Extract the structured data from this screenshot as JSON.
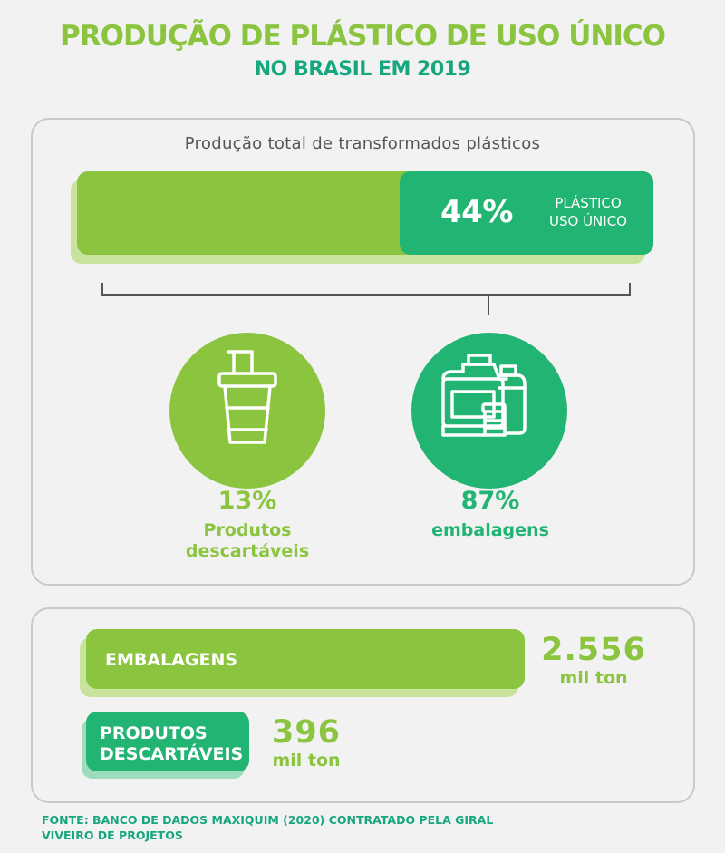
{
  "title": "PRODUÇÃO DE PLÁSTICO DE USO ÚNICO",
  "subtitle": "NO BRASIL EM 2019",
  "top_panel": {
    "caption": "Produção total de transformados plásticos",
    "share_pct_label": "44%",
    "share_label": "PLÁSTICO USO ÚNICO",
    "segments": [
      {
        "pct_label": "13%",
        "label": "Produtos descartáveis",
        "icon": "cup-with-straw-icon",
        "color": "#8bc53f"
      },
      {
        "pct_label": "87%",
        "label": "embalagens",
        "icon": "packaging-containers-icon",
        "color": "#22b473"
      }
    ]
  },
  "bottom_panel": {
    "bars": [
      {
        "label": "EMBALAGENS",
        "value_label": "2.556",
        "unit": "mil ton",
        "color": "#8bc53f"
      },
      {
        "label": "PRODUTOS DESCARTÁVEIS",
        "value_label": "396",
        "unit": "mil ton",
        "color": "#22b473"
      }
    ]
  },
  "source": "FONTE: BANCO DE DADOS MAXIQUIM (2020) CONTRATADO PELA GIRAL VIVEIRO DE PROJETOS",
  "colors": {
    "light_green": "#8bc53f",
    "dark_green": "#22b473",
    "title_teal": "#16a77f"
  },
  "chart_data": [
    {
      "type": "bar",
      "categories": [
        "PLÁSTICO USO ÚNICO"
      ],
      "values": [
        44
      ],
      "ylim": [
        0,
        100
      ]
    },
    {
      "type": "pie",
      "categories": [
        "Produtos descartáveis",
        "embalagens"
      ],
      "values": [
        13,
        87
      ]
    },
    {
      "type": "bar",
      "categories": [
        "EMBALAGENS",
        "PRODUTOS DESCARTÁVEIS"
      ],
      "values": [
        2556,
        396
      ]
    }
  ]
}
